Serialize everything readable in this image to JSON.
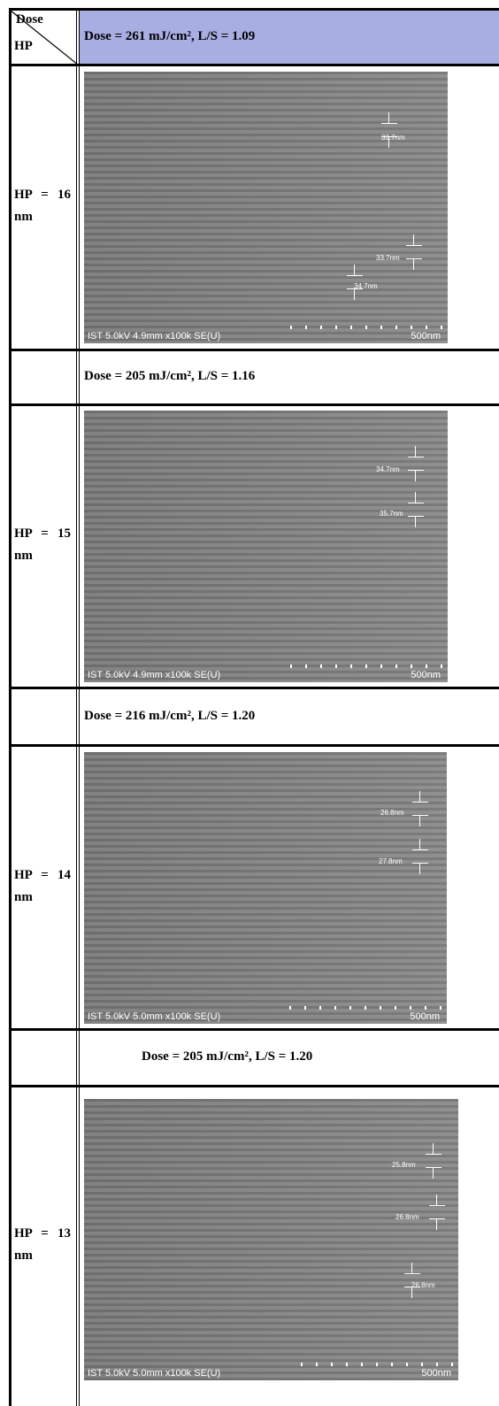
{
  "header": {
    "dose": "Dose",
    "hp": "HP"
  },
  "sections": [
    {
      "condition": "Dose = 261 mJ/cm², L/S = 1.09",
      "hp": "HP = 16 nm",
      "image": {
        "info": "IST 5.0kV 4.9mm x100k SE(U)",
        "scale": "500nm",
        "measurements": [
          "33.7nm",
          "33.7nm",
          "34.7nm"
        ]
      }
    },
    {
      "condition": "Dose = 205 mJ/cm², L/S = 1.16",
      "hp": "HP = 15 nm",
      "image": {
        "info": "IST 5.0kV 4.9mm x100k SE(U)",
        "scale": "500nm",
        "measurements": [
          "34.7nm",
          "35.7nm"
        ]
      }
    },
    {
      "condition": "Dose = 216 mJ/cm², L/S = 1.20",
      "hp": "HP = 14 nm",
      "image": {
        "info": "IST 5.0kV 5.0mm x100k SE(U)",
        "scale": "500nm",
        "measurements": [
          "26.8nm",
          "27.8nm"
        ]
      }
    },
    {
      "condition": "Dose = 205 mJ/cm², L/S = 1.20",
      "hp": "HP = 13 nm",
      "image": {
        "info": "IST 5.0kV 5.0mm x100k SE(U)",
        "scale": "500nm",
        "measurements": [
          "25.8nm",
          "26.8nm",
          "26.8nm"
        ]
      }
    }
  ]
}
